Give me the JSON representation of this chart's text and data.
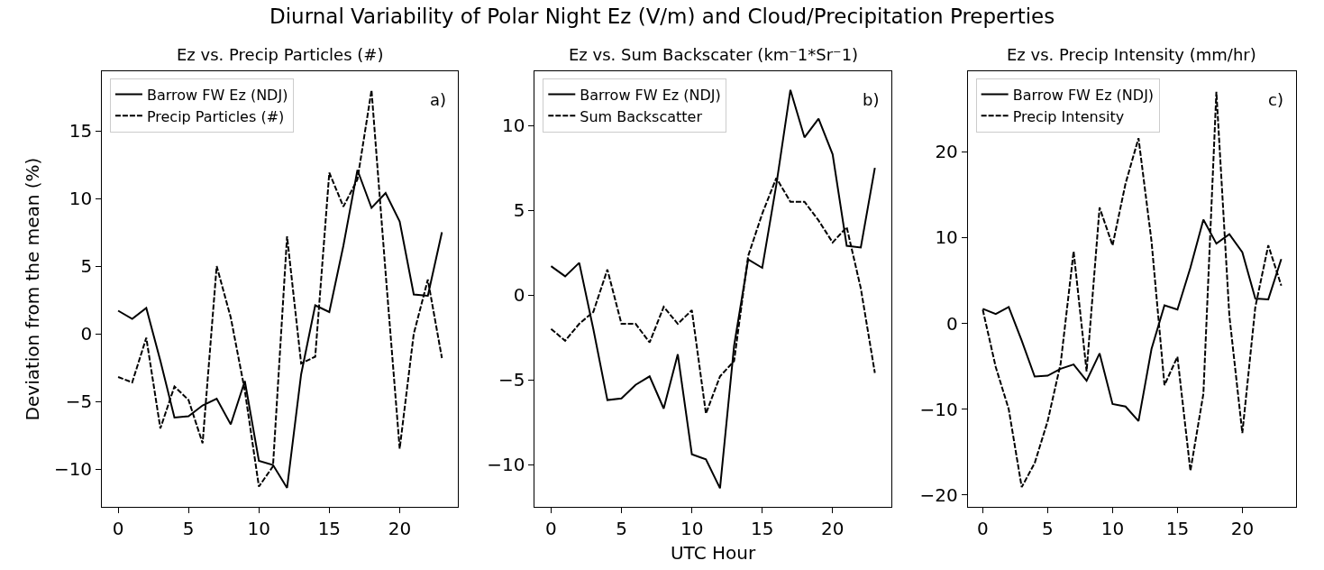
{
  "chart_data": [
    {
      "type": "line",
      "subtitle": "Diurnal Variability of Polar Night Ez (V/m) and Cloud/Precipitation Preperties",
      "title": "Ez vs. Precip Particles (#)",
      "ylabel": "Deviation from the mean (%)",
      "x": [
        0,
        1,
        2,
        3,
        4,
        5,
        6,
        7,
        8,
        9,
        10,
        11,
        12,
        13,
        14,
        15,
        16,
        17,
        18,
        19,
        20,
        21,
        22,
        23
      ],
      "xlim": [
        -1.15,
        24.15
      ],
      "xticks": [
        0,
        5,
        10,
        15,
        20
      ],
      "ylim": [
        -12.8,
        19.4
      ],
      "yticks": [
        -10,
        -5,
        0,
        5,
        10,
        15
      ],
      "legend": "top left",
      "annotations": [
        "a)"
      ],
      "series": [
        {
          "name": "Barrow FW Ez (NDJ)",
          "color": "#000000",
          "line_style": "solid",
          "values": [
            1.7,
            1.1,
            1.9,
            -2.0,
            -6.2,
            -6.1,
            -5.3,
            -4.8,
            -6.7,
            -3.5,
            -9.4,
            -9.7,
            -11.4,
            -3.0,
            2.1,
            1.6,
            6.5,
            12.1,
            9.3,
            10.4,
            8.3,
            2.9,
            2.8,
            7.5
          ]
        },
        {
          "name": "Precip Particles (#)",
          "color": "#000000",
          "line_style": "dashed",
          "values": [
            -3.2,
            -3.6,
            -0.3,
            -7.0,
            -3.9,
            -4.9,
            -8.1,
            5.0,
            1.2,
            -4.2,
            -11.3,
            -9.8,
            7.2,
            -2.2,
            -1.7,
            11.9,
            9.4,
            11.4,
            18.0,
            4.5,
            -8.5,
            0.0,
            4.0,
            -1.8
          ]
        }
      ]
    },
    {
      "type": "line",
      "title": "Ez vs. Sum Backscater (km⁻1*Sr⁻1)",
      "xlabel": "UTC Hour",
      "x": [
        0,
        1,
        2,
        3,
        4,
        5,
        6,
        7,
        8,
        9,
        10,
        11,
        12,
        13,
        14,
        15,
        16,
        17,
        18,
        19,
        20,
        21,
        22,
        23
      ],
      "xlim": [
        -1.15,
        24.15
      ],
      "xticks": [
        0,
        5,
        10,
        15,
        20
      ],
      "ylim": [
        -12.5,
        13.2
      ],
      "yticks": [
        -10,
        -5,
        0,
        5,
        10
      ],
      "legend": "top left",
      "annotations": [
        "b)"
      ],
      "series": [
        {
          "name": "Barrow FW Ez (NDJ)",
          "color": "#000000",
          "line_style": "solid",
          "values": [
            1.7,
            1.1,
            1.9,
            -2.0,
            -6.2,
            -6.1,
            -5.3,
            -4.8,
            -6.7,
            -3.5,
            -9.4,
            -9.7,
            -11.4,
            -3.0,
            2.1,
            1.6,
            6.5,
            12.1,
            9.3,
            10.4,
            8.3,
            2.9,
            2.8,
            7.5
          ]
        },
        {
          "name": "Sum Backscatter",
          "color": "#000000",
          "line_style": "dashed",
          "values": [
            -2.0,
            -2.7,
            -1.7,
            -1.0,
            1.5,
            -1.7,
            -1.7,
            -2.8,
            -0.7,
            -1.7,
            -0.9,
            -7.0,
            -4.8,
            -3.9,
            2.3,
            4.8,
            6.9,
            5.5,
            5.5,
            4.4,
            3.1,
            4.0,
            0.4,
            -4.6
          ]
        }
      ]
    },
    {
      "type": "line",
      "title": "Ez vs. Precip Intensity (mm/hr)",
      "x": [
        0,
        1,
        2,
        3,
        4,
        5,
        6,
        7,
        8,
        9,
        10,
        11,
        12,
        13,
        14,
        15,
        16,
        17,
        18,
        19,
        20,
        21,
        22,
        23
      ],
      "xlim": [
        -1.15,
        24.15
      ],
      "xticks": [
        0,
        5,
        10,
        15,
        20
      ],
      "ylim": [
        -21.4,
        29.4
      ],
      "yticks": [
        -20,
        -10,
        0,
        10,
        20
      ],
      "legend": "top left",
      "annotations": [
        "c)"
      ],
      "series": [
        {
          "name": "Barrow FW Ez (NDJ)",
          "color": "#000000",
          "line_style": "solid",
          "values": [
            1.7,
            1.1,
            1.9,
            -2.0,
            -6.2,
            -6.1,
            -5.3,
            -4.8,
            -6.7,
            -3.5,
            -9.4,
            -9.7,
            -11.4,
            -3.0,
            2.1,
            1.6,
            6.5,
            12.1,
            9.3,
            10.4,
            8.3,
            2.9,
            2.8,
            7.5
          ]
        },
        {
          "name": "Precip Intensity",
          "color": "#000000",
          "line_style": "dashed",
          "values": [
            1.6,
            -5.1,
            -10.0,
            -19.1,
            -16.3,
            -11.4,
            -4.7,
            8.4,
            -5.6,
            13.5,
            9.1,
            16.3,
            21.6,
            9.6,
            -7.2,
            -3.9,
            -17.2,
            -8.2,
            27.0,
            0.9,
            -12.8,
            1.9,
            9.1,
            4.4
          ]
        }
      ]
    }
  ]
}
